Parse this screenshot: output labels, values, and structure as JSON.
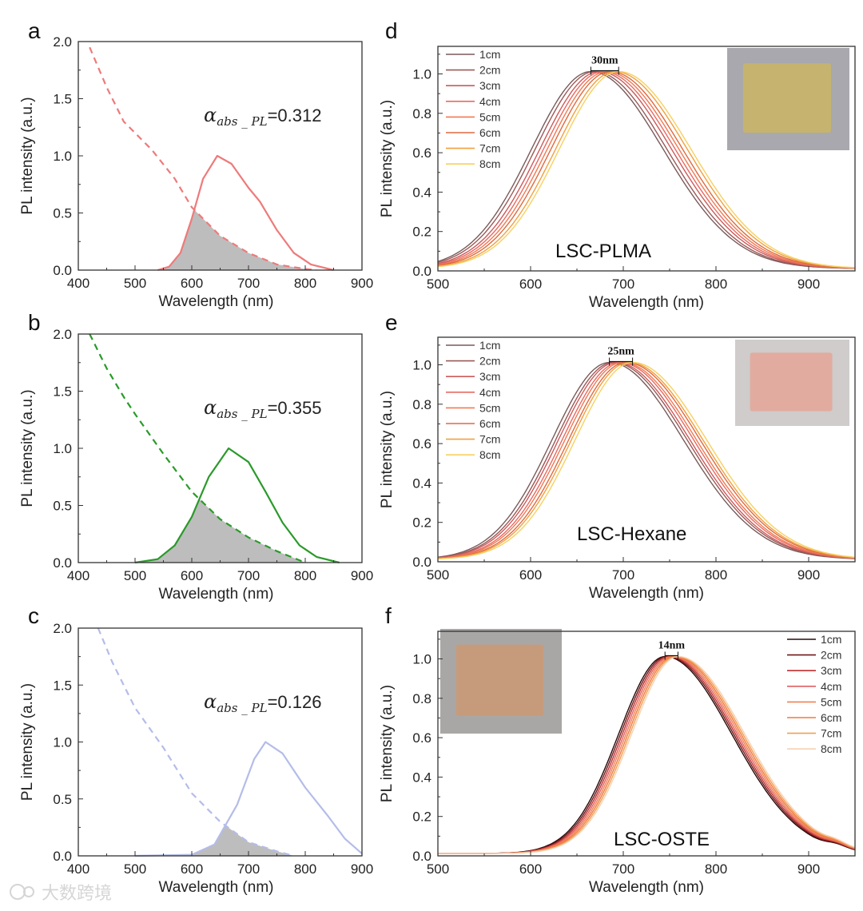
{
  "watermark": "大数跨境",
  "chart_data": [
    {
      "panel": "a",
      "type": "line",
      "xlabel": "Wavelength (nm)",
      "ylabel": "PL intensity (a.u.)",
      "xlim": [
        400,
        900
      ],
      "ylim": [
        0,
        2.0
      ],
      "xticks": [
        400,
        500,
        600,
        700,
        800,
        900
      ],
      "yticks": [
        0.0,
        0.5,
        1.0,
        1.5,
        2.0
      ],
      "annotation": {
        "symbol": "α",
        "sub": "abs _ PL",
        "value": "=0.312"
      },
      "color": "#ee7a7a",
      "pl": {
        "x": [
          540,
          560,
          580,
          600,
          620,
          645,
          670,
          700,
          720,
          750,
          780,
          810,
          850
        ],
        "y": [
          0,
          0.03,
          0.15,
          0.45,
          0.8,
          1.0,
          0.93,
          0.72,
          0.6,
          0.35,
          0.15,
          0.05,
          0
        ]
      },
      "absorption": {
        "x": [
          420,
          450,
          480,
          530,
          570,
          600,
          650,
          700,
          750,
          800,
          820
        ],
        "y": [
          1.95,
          1.6,
          1.3,
          1.05,
          0.8,
          0.55,
          0.3,
          0.15,
          0.05,
          0.01,
          0
        ]
      }
    },
    {
      "panel": "b",
      "type": "line",
      "xlabel": "Wavelength (nm)",
      "ylabel": "PL intensity (a.u.)",
      "xlim": [
        400,
        900
      ],
      "ylim": [
        0,
        2.0
      ],
      "xticks": [
        400,
        500,
        600,
        700,
        800,
        900
      ],
      "yticks": [
        0.0,
        0.5,
        1.0,
        1.5,
        2.0
      ],
      "annotation": {
        "symbol": "α",
        "sub": "abs _ PL",
        "value": "=0.355"
      },
      "color": "#2a9a2a",
      "pl": {
        "x": [
          500,
          540,
          570,
          600,
          630,
          665,
          700,
          730,
          760,
          790,
          820,
          860
        ],
        "y": [
          0,
          0.03,
          0.15,
          0.4,
          0.75,
          1.0,
          0.88,
          0.62,
          0.35,
          0.15,
          0.05,
          0
        ]
      },
      "absorption": {
        "x": [
          420,
          450,
          480,
          500,
          550,
          600,
          650,
          700,
          750,
          800
        ],
        "y": [
          2.0,
          1.7,
          1.45,
          1.3,
          0.95,
          0.62,
          0.38,
          0.22,
          0.1,
          0
        ]
      }
    },
    {
      "panel": "c",
      "type": "line",
      "xlabel": "Wavelength (nm)",
      "ylabel": "PL intensity (a.u.)",
      "xlim": [
        400,
        900
      ],
      "ylim": [
        0,
        2.0
      ],
      "xticks": [
        400,
        500,
        600,
        700,
        800,
        900
      ],
      "yticks": [
        0.0,
        0.5,
        1.0,
        1.5,
        2.0
      ],
      "annotation": {
        "symbol": "α",
        "sub": "abs _ PL",
        "value": "=0.126"
      },
      "color": "#b4bce8",
      "pl": {
        "x": [
          500,
          600,
          640,
          680,
          710,
          730,
          760,
          800,
          840,
          870,
          900
        ],
        "y": [
          0,
          0.01,
          0.1,
          0.45,
          0.85,
          1.0,
          0.9,
          0.6,
          0.35,
          0.15,
          0.02
        ]
      },
      "absorption": {
        "x": [
          435,
          460,
          500,
          550,
          600,
          650,
          700,
          750,
          780
        ],
        "y": [
          2.0,
          1.7,
          1.3,
          0.95,
          0.55,
          0.3,
          0.12,
          0.04,
          0
        ]
      }
    },
    {
      "panel": "d",
      "type": "line",
      "label": "LSC-PLMA",
      "shift_label": "30nm",
      "xlabel": "Wavelength (nm)",
      "ylabel": "PL intensity (a.u.)",
      "xlim": [
        500,
        950
      ],
      "ylim": [
        0,
        1.14
      ],
      "xticks": [
        500,
        600,
        700,
        800,
        900
      ],
      "yticks": [
        0.0,
        0.2,
        0.4,
        0.6,
        0.8,
        1.0
      ],
      "legend_position": "top-left",
      "sigma_left": 64,
      "sigma_right": 78,
      "series": [
        {
          "name": "1cm",
          "peak": 665,
          "color": "#7a5a5a"
        },
        {
          "name": "2cm",
          "peak": 669,
          "color": "#9a5a58"
        },
        {
          "name": "3cm",
          "peak": 674,
          "color": "#cc5a5a"
        },
        {
          "name": "4cm",
          "peak": 678,
          "color": "#e86a62"
        },
        {
          "name": "5cm",
          "peak": 682,
          "color": "#f07a52"
        },
        {
          "name": "6cm",
          "peak": 686,
          "color": "#de6a40"
        },
        {
          "name": "7cm",
          "peak": 691,
          "color": "#f0a040"
        },
        {
          "name": "8cm",
          "peak": 695,
          "color": "#f8d060"
        }
      ]
    },
    {
      "panel": "e",
      "type": "line",
      "label": "LSC-Hexane",
      "shift_label": "25nm",
      "xlabel": "Wavelength (nm)",
      "ylabel": "PL intensity (a.u.)",
      "xlim": [
        500,
        950
      ],
      "ylim": [
        0,
        1.14
      ],
      "xticks": [
        500,
        600,
        700,
        800,
        900
      ],
      "yticks": [
        0.0,
        0.2,
        0.4,
        0.6,
        0.8,
        1.0
      ],
      "legend_position": "top-left",
      "sigma_left": 62,
      "sigma_right": 80,
      "series": [
        {
          "name": "1cm",
          "peak": 685,
          "color": "#7a5a5a"
        },
        {
          "name": "2cm",
          "peak": 689,
          "color": "#9a5a58"
        },
        {
          "name": "3cm",
          "peak": 692,
          "color": "#cc5a5a"
        },
        {
          "name": "4cm",
          "peak": 696,
          "color": "#e86a62"
        },
        {
          "name": "5cm",
          "peak": 699,
          "color": "#f07a52"
        },
        {
          "name": "6cm",
          "peak": 703,
          "color": "#de6a40"
        },
        {
          "name": "7cm",
          "peak": 706,
          "color": "#f0a040"
        },
        {
          "name": "8cm",
          "peak": 710,
          "color": "#f8d060"
        }
      ]
    },
    {
      "panel": "f",
      "type": "line",
      "label": "LSC-OSTE",
      "shift_label": "14nm",
      "xlabel": "Wavelength (nm)",
      "ylabel": "PL intensity (a.u.)",
      "xlim": [
        500,
        950
      ],
      "ylim": [
        0,
        1.14
      ],
      "xticks": [
        500,
        600,
        700,
        800,
        900
      ],
      "yticks": [
        0.0,
        0.2,
        0.4,
        0.6,
        0.8,
        1.0
      ],
      "legend_position": "top-right",
      "sigma_left": 50,
      "sigma_right": 72,
      "series": [
        {
          "name": "1cm",
          "peak": 745,
          "color": "#2a0a0a"
        },
        {
          "name": "2cm",
          "peak": 747,
          "color": "#701818"
        },
        {
          "name": "3cm",
          "peak": 749,
          "color": "#c03030"
        },
        {
          "name": "4cm",
          "peak": 751,
          "color": "#e06060"
        },
        {
          "name": "5cm",
          "peak": 753,
          "color": "#f08050"
        },
        {
          "name": "6cm",
          "peak": 755,
          "color": "#f07840"
        },
        {
          "name": "7cm",
          "peak": 757,
          "color": "#f0a050"
        },
        {
          "name": "8cm",
          "peak": 759,
          "color": "#f8d0b0"
        }
      ]
    }
  ]
}
